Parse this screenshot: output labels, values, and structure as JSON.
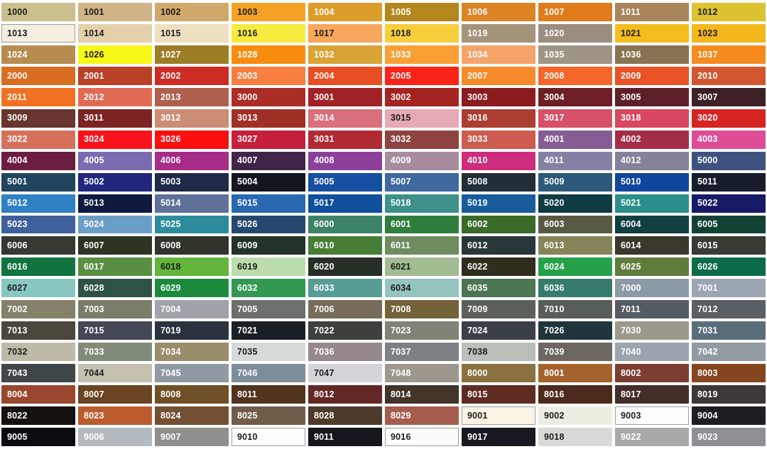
{
  "chart_title": "",
  "colors": {
    "background": "#FFFFFF",
    "dark_text": "#1D1D1B",
    "light_text": "#FFFFFF",
    "light_cell_border": "#9D9D97"
  },
  "grid": {
    "columns": 10,
    "rows": 21
  },
  "cells": [
    {
      "code": "1000",
      "bg": "#CBC08D",
      "fg": "dark"
    },
    {
      "code": "1001",
      "bg": "#D0B487",
      "fg": "dark"
    },
    {
      "code": "1002",
      "bg": "#D0A86B",
      "fg": "dark"
    },
    {
      "code": "1003",
      "bg": "#F5A126",
      "fg": "dark"
    },
    {
      "code": "1004",
      "bg": "#DC9D2A",
      "fg": "light"
    },
    {
      "code": "1005",
      "bg": "#B3871E",
      "fg": "light"
    },
    {
      "code": "1006",
      "bg": "#DD8324",
      "fg": "light"
    },
    {
      "code": "1007",
      "bg": "#E07C1B",
      "fg": "light"
    },
    {
      "code": "1011",
      "bg": "#A9855C",
      "fg": "light"
    },
    {
      "code": "1012",
      "bg": "#DDC232",
      "fg": "dark"
    },
    {
      "code": "1013",
      "bg": "#F3EEDF",
      "fg": "dark",
      "bordered": true
    },
    {
      "code": "1014",
      "bg": "#E5D0AC",
      "fg": "dark"
    },
    {
      "code": "1015",
      "bg": "#EFDFC1",
      "fg": "dark"
    },
    {
      "code": "1016",
      "bg": "#F6EB3E",
      "fg": "dark"
    },
    {
      "code": "1017",
      "bg": "#F8A75C",
      "fg": "dark"
    },
    {
      "code": "1018",
      "bg": "#F7CE3C",
      "fg": "dark"
    },
    {
      "code": "1019",
      "bg": "#A4947C",
      "fg": "light"
    },
    {
      "code": "1020",
      "bg": "#9B8D7F",
      "fg": "light"
    },
    {
      "code": "1021",
      "bg": "#F4BC1D",
      "fg": "dark"
    },
    {
      "code": "1023",
      "bg": "#F3B81E",
      "fg": "dark"
    },
    {
      "code": "1024",
      "bg": "#B68C50",
      "fg": "light"
    },
    {
      "code": "1026",
      "bg": "#F7F718",
      "fg": "dark"
    },
    {
      "code": "1027",
      "bg": "#9C7D26",
      "fg": "light"
    },
    {
      "code": "1028",
      "bg": "#F88C0E",
      "fg": "light"
    },
    {
      "code": "1032",
      "bg": "#D9A435",
      "fg": "light"
    },
    {
      "code": "1033",
      "bg": "#F8A034",
      "fg": "light"
    },
    {
      "code": "1034",
      "bg": "#F5A368",
      "fg": "light"
    },
    {
      "code": "1035",
      "bg": "#9E9585",
      "fg": "light"
    },
    {
      "code": "1036",
      "bg": "#8A7352",
      "fg": "light"
    },
    {
      "code": "1037",
      "bg": "#F58B1F",
      "fg": "light"
    },
    {
      "code": "2000",
      "bg": "#DA6E20",
      "fg": "light"
    },
    {
      "code": "2001",
      "bg": "#BA4026",
      "fg": "light"
    },
    {
      "code": "2002",
      "bg": "#CC2C24",
      "fg": "light"
    },
    {
      "code": "2003",
      "bg": "#F97E42",
      "fg": "light"
    },
    {
      "code": "2004",
      "bg": "#E84E23",
      "fg": "light"
    },
    {
      "code": "2005",
      "bg": "#FB2418",
      "fg": "light"
    },
    {
      "code": "2007",
      "bg": "#F78B2B",
      "fg": "light"
    },
    {
      "code": "2008",
      "bg": "#F4662A",
      "fg": "light"
    },
    {
      "code": "2009",
      "bg": "#E95325",
      "fg": "light"
    },
    {
      "code": "2010",
      "bg": "#D25730",
      "fg": "light"
    },
    {
      "code": "2011",
      "bg": "#F17123",
      "fg": "light"
    },
    {
      "code": "2012",
      "bg": "#E16A54",
      "fg": "light"
    },
    {
      "code": "2013",
      "bg": "#AE5F4D",
      "fg": "light"
    },
    {
      "code": "3000",
      "bg": "#AC2C26",
      "fg": "light"
    },
    {
      "code": "3001",
      "bg": "#A02226",
      "fg": "light"
    },
    {
      "code": "3002",
      "bg": "#A42422",
      "fg": "light"
    },
    {
      "code": "3003",
      "bg": "#8C1B20",
      "fg": "light"
    },
    {
      "code": "3004",
      "bg": "#6E1F26",
      "fg": "light"
    },
    {
      "code": "3005",
      "bg": "#5E2028",
      "fg": "light"
    },
    {
      "code": "3007",
      "bg": "#3E2125",
      "fg": "light"
    },
    {
      "code": "3009",
      "bg": "#68352F",
      "fg": "light"
    },
    {
      "code": "3011",
      "bg": "#7C2423",
      "fg": "light"
    },
    {
      "code": "3012",
      "bg": "#CB8D73",
      "fg": "light"
    },
    {
      "code": "3013",
      "bg": "#A03026",
      "fg": "light"
    },
    {
      "code": "3014",
      "bg": "#D9707B",
      "fg": "light"
    },
    {
      "code": "3015",
      "bg": "#E6A9B6",
      "fg": "dark"
    },
    {
      "code": "3016",
      "bg": "#AC3E34",
      "fg": "light"
    },
    {
      "code": "3017",
      "bg": "#D65167",
      "fg": "light"
    },
    {
      "code": "3018",
      "bg": "#D9465F",
      "fg": "light"
    },
    {
      "code": "3020",
      "bg": "#D62423",
      "fg": "light"
    },
    {
      "code": "3022",
      "bg": "#D7705B",
      "fg": "light"
    },
    {
      "code": "3024",
      "bg": "#F7121C",
      "fg": "light"
    },
    {
      "code": "3026",
      "bg": "#FB0F0F",
      "fg": "light"
    },
    {
      "code": "3027",
      "bg": "#C51F3C",
      "fg": "light"
    },
    {
      "code": "3031",
      "bg": "#B02A34",
      "fg": "light"
    },
    {
      "code": "3032",
      "bg": "#8E4340",
      "fg": "light"
    },
    {
      "code": "3033",
      "bg": "#CD5B4F",
      "fg": "light"
    },
    {
      "code": "4001",
      "bg": "#855C94",
      "fg": "light"
    },
    {
      "code": "4002",
      "bg": "#A42D47",
      "fg": "light"
    },
    {
      "code": "4003",
      "bg": "#DE4E96",
      "fg": "light"
    },
    {
      "code": "4004",
      "bg": "#6B1E3F",
      "fg": "light"
    },
    {
      "code": "4005",
      "bg": "#7C6BB0",
      "fg": "light"
    },
    {
      "code": "4006",
      "bg": "#A62C87",
      "fg": "light"
    },
    {
      "code": "4007",
      "bg": "#432449",
      "fg": "light"
    },
    {
      "code": "4008",
      "bg": "#8C4099",
      "fg": "light"
    },
    {
      "code": "4009",
      "bg": "#A78C9E",
      "fg": "light"
    },
    {
      "code": "4010",
      "bg": "#CE2D7D",
      "fg": "light"
    },
    {
      "code": "4011",
      "bg": "#8780A5",
      "fg": "light"
    },
    {
      "code": "4012",
      "bg": "#868299",
      "fg": "light"
    },
    {
      "code": "5000",
      "bg": "#3E5380",
      "fg": "light"
    },
    {
      "code": "5001",
      "bg": "#21445F",
      "fg": "light"
    },
    {
      "code": "5002",
      "bg": "#22277D",
      "fg": "light"
    },
    {
      "code": "5003",
      "bg": "#1E2A47",
      "fg": "light"
    },
    {
      "code": "5004",
      "bg": "#14161F",
      "fg": "light"
    },
    {
      "code": "5005",
      "bg": "#174FA0",
      "fg": "light"
    },
    {
      "code": "5007",
      "bg": "#3E689E",
      "fg": "light"
    },
    {
      "code": "5008",
      "bg": "#222E38",
      "fg": "light"
    },
    {
      "code": "5009",
      "bg": "#2D597A",
      "fg": "light"
    },
    {
      "code": "5010",
      "bg": "#10469B",
      "fg": "light"
    },
    {
      "code": "5011",
      "bg": "#171C2C",
      "fg": "light"
    },
    {
      "code": "5012",
      "bg": "#2F81C4",
      "fg": "light"
    },
    {
      "code": "5013",
      "bg": "#101A3E",
      "fg": "light"
    },
    {
      "code": "5014",
      "bg": "#5F7199",
      "fg": "light"
    },
    {
      "code": "5015",
      "bg": "#2869B0",
      "fg": "light"
    },
    {
      "code": "5017",
      "bg": "#0F4F9C",
      "fg": "light"
    },
    {
      "code": "5018",
      "bg": "#3E918A",
      "fg": "light"
    },
    {
      "code": "5019",
      "bg": "#185C9C",
      "fg": "light"
    },
    {
      "code": "5020",
      "bg": "#0E3C42",
      "fg": "light"
    },
    {
      "code": "5021",
      "bg": "#2A8F8A",
      "fg": "light"
    },
    {
      "code": "5022",
      "bg": "#181A68",
      "fg": "light"
    },
    {
      "code": "5023",
      "bg": "#3E609B",
      "fg": "light"
    },
    {
      "code": "5024",
      "bg": "#6B9EC6",
      "fg": "light"
    },
    {
      "code": "5025",
      "bg": "#2D8C9C",
      "fg": "light"
    },
    {
      "code": "5026",
      "bg": "#25486F",
      "fg": "light"
    },
    {
      "code": "6000",
      "bg": "#3D8368",
      "fg": "light"
    },
    {
      "code": "6001",
      "bg": "#2F7E3E",
      "fg": "light"
    },
    {
      "code": "6002",
      "bg": "#3A6B28",
      "fg": "light"
    },
    {
      "code": "6003",
      "bg": "#585A44",
      "fg": "light"
    },
    {
      "code": "6004",
      "bg": "#10403F",
      "fg": "light"
    },
    {
      "code": "6005",
      "bg": "#124234",
      "fg": "light"
    },
    {
      "code": "6006",
      "bg": "#343A2F",
      "fg": "light"
    },
    {
      "code": "6007",
      "bg": "#2C3424",
      "fg": "light"
    },
    {
      "code": "6008",
      "bg": "#31342A",
      "fg": "light"
    },
    {
      "code": "6009",
      "bg": "#233327",
      "fg": "light"
    },
    {
      "code": "6010",
      "bg": "#477E36",
      "fg": "light"
    },
    {
      "code": "6011",
      "bg": "#6F8C60",
      "fg": "light"
    },
    {
      "code": "6012",
      "bg": "#2A373A",
      "fg": "light"
    },
    {
      "code": "6013",
      "bg": "#878459",
      "fg": "light"
    },
    {
      "code": "6014",
      "bg": "#3A382C",
      "fg": "light"
    },
    {
      "code": "6015",
      "bg": "#383C33",
      "fg": "light"
    },
    {
      "code": "6016",
      "bg": "#11743F",
      "fg": "light"
    },
    {
      "code": "6017",
      "bg": "#598F42",
      "fg": "light"
    },
    {
      "code": "6018",
      "bg": "#63B53C",
      "fg": "dark"
    },
    {
      "code": "6019",
      "bg": "#BBDCAC",
      "fg": "dark"
    },
    {
      "code": "6020",
      "bg": "#262F26",
      "fg": "light"
    },
    {
      "code": "6021",
      "bg": "#A0BC90",
      "fg": "dark"
    },
    {
      "code": "6022",
      "bg": "#302D1F",
      "fg": "light"
    },
    {
      "code": "6024",
      "bg": "#25A149",
      "fg": "light"
    },
    {
      "code": "6025",
      "bg": "#607C3C",
      "fg": "light"
    },
    {
      "code": "6026",
      "bg": "#0D6B4A",
      "fg": "light"
    },
    {
      "code": "6027",
      "bg": "#89C8C1",
      "fg": "dark"
    },
    {
      "code": "6028",
      "bg": "#2E5244",
      "fg": "light"
    },
    {
      "code": "6029",
      "bg": "#1C8A3C",
      "fg": "light"
    },
    {
      "code": "6032",
      "bg": "#339952",
      "fg": "light"
    },
    {
      "code": "6033",
      "bg": "#579D93",
      "fg": "light"
    },
    {
      "code": "6034",
      "bg": "#95C3BE",
      "fg": "dark"
    },
    {
      "code": "6035",
      "bg": "#4C7651",
      "fg": "light"
    },
    {
      "code": "6036",
      "bg": "#357C6D",
      "fg": "light"
    },
    {
      "code": "7000",
      "bg": "#8C9AA6",
      "fg": "light"
    },
    {
      "code": "7001",
      "bg": "#9CA6B2",
      "fg": "light"
    },
    {
      "code": "7002",
      "bg": "#85806A",
      "fg": "light"
    },
    {
      "code": "7003",
      "bg": "#7B7C69",
      "fg": "light"
    },
    {
      "code": "7004",
      "bg": "#A0A3A9",
      "fg": "light"
    },
    {
      "code": "7005",
      "bg": "#6B706D",
      "fg": "light"
    },
    {
      "code": "7006",
      "bg": "#776C59",
      "fg": "light"
    },
    {
      "code": "7008",
      "bg": "#746239",
      "fg": "light"
    },
    {
      "code": "7009",
      "bg": "#5B6158",
      "fg": "light"
    },
    {
      "code": "7010",
      "bg": "#575D57",
      "fg": "light"
    },
    {
      "code": "7011",
      "bg": "#545C63",
      "fg": "light"
    },
    {
      "code": "7012",
      "bg": "#585F65",
      "fg": "light"
    },
    {
      "code": "7013",
      "bg": "#4C473C",
      "fg": "light"
    },
    {
      "code": "7015",
      "bg": "#434855",
      "fg": "light"
    },
    {
      "code": "7019",
      "bg": "#2B333F",
      "fg": "light"
    },
    {
      "code": "7021",
      "bg": "#1A2126",
      "fg": "light"
    },
    {
      "code": "7022",
      "bg": "#3E403B",
      "fg": "light"
    },
    {
      "code": "7023",
      "bg": "#808376",
      "fg": "light"
    },
    {
      "code": "7024",
      "bg": "#394048",
      "fg": "light"
    },
    {
      "code": "7026",
      "bg": "#21363C",
      "fg": "light"
    },
    {
      "code": "7030",
      "bg": "#9B998D",
      "fg": "light"
    },
    {
      "code": "7031",
      "bg": "#5A6D7B",
      "fg": "light"
    },
    {
      "code": "7032",
      "bg": "#BEBAA8",
      "fg": "dark"
    },
    {
      "code": "7033",
      "bg": "#808B79",
      "fg": "light"
    },
    {
      "code": "7034",
      "bg": "#998E6A",
      "fg": "light"
    },
    {
      "code": "7035",
      "bg": "#D4DBD8",
      "fg": "dark"
    },
    {
      "code": "7036",
      "bg": "#96898D",
      "fg": "light"
    },
    {
      "code": "7037",
      "bg": "#7E8184",
      "fg": "light"
    },
    {
      "code": "7038",
      "bg": "#BABFB9",
      "fg": "dark"
    },
    {
      "code": "7039",
      "bg": "#6C6861",
      "fg": "light"
    },
    {
      "code": "7040",
      "bg": "#9CA4AE",
      "fg": "light"
    },
    {
      "code": "7042",
      "bg": "#919BA2",
      "fg": "light"
    },
    {
      "code": "7043",
      "bg": "#3F4749",
      "fg": "light"
    },
    {
      "code": "7044",
      "bg": "#C4C1B1",
      "fg": "dark"
    },
    {
      "code": "7045",
      "bg": "#919AA3",
      "fg": "light"
    },
    {
      "code": "7046",
      "bg": "#7E8D9A",
      "fg": "light"
    },
    {
      "code": "7047",
      "bg": "#D5D4D8",
      "fg": "dark"
    },
    {
      "code": "7048",
      "bg": "#9E978D",
      "fg": "light"
    },
    {
      "code": "8000",
      "bg": "#8B7140",
      "fg": "light"
    },
    {
      "code": "8001",
      "bg": "#A4632D",
      "fg": "light"
    },
    {
      "code": "8002",
      "bg": "#7A3E32",
      "fg": "light"
    },
    {
      "code": "8003",
      "bg": "#85451F",
      "fg": "light"
    },
    {
      "code": "8004",
      "bg": "#99472F",
      "fg": "light"
    },
    {
      "code": "8007",
      "bg": "#6A4423",
      "fg": "light"
    },
    {
      "code": "8008",
      "bg": "#705026",
      "fg": "light"
    },
    {
      "code": "8011",
      "bg": "#51331E",
      "fg": "light"
    },
    {
      "code": "8012",
      "bg": "#632825",
      "fg": "light"
    },
    {
      "code": "8014",
      "bg": "#423429",
      "fg": "light"
    },
    {
      "code": "8015",
      "bg": "#5F2C24",
      "fg": "light"
    },
    {
      "code": "8016",
      "bg": "#4C2A1E",
      "fg": "light"
    },
    {
      "code": "8017",
      "bg": "#442E29",
      "fg": "light"
    },
    {
      "code": "8019",
      "bg": "#3D3738",
      "fg": "light"
    },
    {
      "code": "8022",
      "bg": "#14110F",
      "fg": "light"
    },
    {
      "code": "8023",
      "bg": "#BC5C2C",
      "fg": "light"
    },
    {
      "code": "8024",
      "bg": "#734F33",
      "fg": "light"
    },
    {
      "code": "8025",
      "bg": "#715C4A",
      "fg": "light"
    },
    {
      "code": "8028",
      "bg": "#4E3B29",
      "fg": "light"
    },
    {
      "code": "8029",
      "bg": "#A65D4E",
      "fg": "light"
    },
    {
      "code": "9001",
      "bg": "#F9F4E4",
      "fg": "dark",
      "bordered": true
    },
    {
      "code": "9002",
      "bg": "#EDEDE1",
      "fg": "dark"
    },
    {
      "code": "9003",
      "bg": "#FCFCFC",
      "fg": "dark",
      "bordered": true
    },
    {
      "code": "9004",
      "bg": "#1F1F23",
      "fg": "light"
    },
    {
      "code": "9005",
      "bg": "#0D0D11",
      "fg": "light"
    },
    {
      "code": "9006",
      "bg": "#B4BAC0",
      "fg": "light"
    },
    {
      "code": "9007",
      "bg": "#8F8F8B",
      "fg": "light"
    },
    {
      "code": "9010",
      "bg": "#FEFEFD",
      "fg": "dark",
      "bordered": true
    },
    {
      "code": "9011",
      "bg": "#15171C",
      "fg": "light"
    },
    {
      "code": "9016",
      "bg": "#FCFDFB",
      "fg": "dark",
      "bordered": true
    },
    {
      "code": "9017",
      "bg": "#171B21",
      "fg": "light"
    },
    {
      "code": "9018",
      "bg": "#D6DCD5",
      "fg": "dark"
    },
    {
      "code": "9022",
      "bg": "#A8AAA9",
      "fg": "light"
    },
    {
      "code": "9023",
      "bg": "#8D9194",
      "fg": "light"
    }
  ]
}
